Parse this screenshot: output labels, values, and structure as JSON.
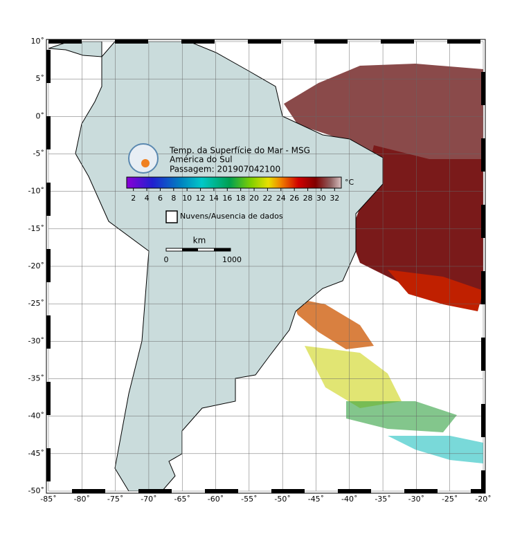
{
  "map": {
    "title_lines": [
      "Temp. da Superfície do Mar - MSG",
      "América do Sul",
      "Passagem: 201907042100"
    ],
    "lon_range": [
      -85,
      -20
    ],
    "lat_range": [
      -50,
      10
    ],
    "lon_ticks": [
      {
        "value": -85,
        "label": "-85˚"
      },
      {
        "value": -80,
        "label": "-80˚"
      },
      {
        "value": -75,
        "label": "-75˚"
      },
      {
        "value": -70,
        "label": "-70˚"
      },
      {
        "value": -65,
        "label": "-65˚"
      },
      {
        "value": -60,
        "label": "-60˚"
      },
      {
        "value": -55,
        "label": "-55˚"
      },
      {
        "value": -50,
        "label": "-50˚"
      },
      {
        "value": -45,
        "label": "-45˚"
      },
      {
        "value": -40,
        "label": "-40˚"
      },
      {
        "value": -35,
        "label": "-35˚"
      },
      {
        "value": -30,
        "label": "-30˚"
      },
      {
        "value": -25,
        "label": "-25˚"
      },
      {
        "value": -20,
        "label": "-20˚"
      }
    ],
    "lat_ticks": [
      {
        "value": 10,
        "label": "10˚"
      },
      {
        "value": 5,
        "label": "5˚"
      },
      {
        "value": 0,
        "label": "0˚"
      },
      {
        "value": -5,
        "label": "-5˚"
      },
      {
        "value": -10,
        "label": "-10˚"
      },
      {
        "value": -15,
        "label": "-15˚"
      },
      {
        "value": -20,
        "label": "-20˚"
      },
      {
        "value": -25,
        "label": "-25˚"
      },
      {
        "value": -30,
        "label": "-30˚"
      },
      {
        "value": -35,
        "label": "-35˚"
      },
      {
        "value": -40,
        "label": "-40˚"
      },
      {
        "value": -45,
        "label": "-45˚"
      },
      {
        "value": -50,
        "label": "-50˚"
      }
    ],
    "colorbar": {
      "range": [
        1,
        33
      ],
      "ticks": [
        2,
        4,
        6,
        8,
        10,
        12,
        14,
        16,
        18,
        20,
        22,
        24,
        26,
        28,
        30,
        32
      ],
      "unit": "°C"
    },
    "legend": "Nuvens/Ausencia de dados",
    "scale": {
      "unit": "km",
      "start": "0",
      "end": "1000"
    }
  }
}
